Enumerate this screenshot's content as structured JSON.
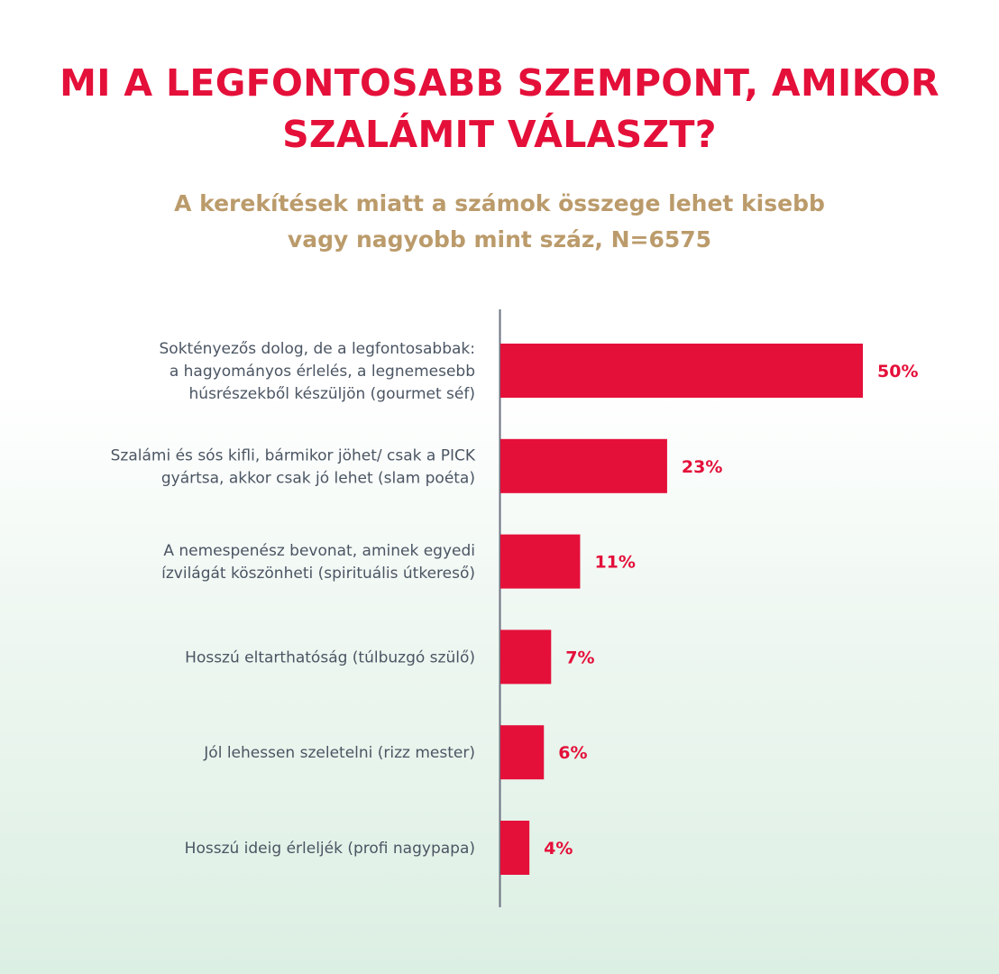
{
  "chart_data": {
    "type": "bar",
    "orientation": "horizontal",
    "title": [
      "MI A LEGFONTOSABB SZEMPONT, AMIKOR",
      "SZALÁMIT VÁLASZT?"
    ],
    "subtitle": [
      "A kerekítések miatt a számok összege lehet kisebb",
      "vagy nagyobb mint száz, N=6575"
    ],
    "categories": [
      [
        "Sokténye­zős dolog, de a legfontosabbak:",
        "a hagyományos érlelés, a legnemesebb",
        "húsrészekből készüljön (gourmet séf)"
      ],
      [
        "Szalámi és sós kifli, bármikor jöhet/ csak a PICK",
        "gyártsa, akkor csak jó lehet (slam poéta)"
      ],
      [
        "A nemespenész bevonat, aminek egyedi",
        "ízvilágát köszönheti (spirituális útkereső)"
      ],
      [
        "Hosszú eltarthatóság (túlbuzgó szülő)"
      ],
      [
        "Jól lehessen szeletelni (rizz mester)"
      ],
      [
        "Hosszú ideig érlelik (profi nagypapa)"
      ]
    ],
    "values": [
      50,
      23,
      11,
      7,
      6,
      4
    ],
    "value_labels": [
      "50%",
      "23%",
      "11%",
      "7%",
      "6%",
      "4%"
    ],
    "unit": "%",
    "xlim": [
      0,
      50
    ],
    "grid": false,
    "bar_color": "#e4103a"
  }
}
